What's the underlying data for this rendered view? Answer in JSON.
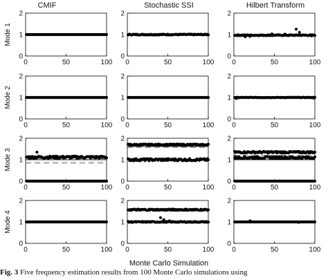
{
  "figure": {
    "column_titles": [
      "CMIF",
      "Stochastic SSI",
      "Hilbert Transform"
    ],
    "row_labels": [
      "Mode 1",
      "Mode 2",
      "Mode 3",
      "Mode 4"
    ],
    "x_label": "Monte Carlo Simulation",
    "caption_label": "Fig. 3",
    "caption_text": " Five frequency estimation results from 100 Monte Carlo simulations using"
  },
  "chart_data": {
    "type": "scatter",
    "xlim": [
      0,
      100
    ],
    "ylim": [
      0,
      2
    ],
    "x_ticks": [
      0,
      50,
      100
    ],
    "y_ticks": [
      0,
      1,
      2
    ],
    "xlabel": "Monte Carlo Simulation",
    "panels": [
      {
        "row": "Mode 1",
        "column": "CMIF",
        "bands": [
          {
            "y": 1.0,
            "jitter": 0.0
          }
        ],
        "reference_lines": [
          {
            "y": 1.0,
            "style": "solid"
          }
        ],
        "points": []
      },
      {
        "row": "Mode 1",
        "column": "Stochastic SSI",
        "bands": [
          {
            "y": 1.0,
            "jitter": 0.02
          }
        ],
        "reference_lines": [
          {
            "y": 1.0,
            "style": "solid"
          }
        ],
        "points": []
      },
      {
        "row": "Mode 1",
        "column": "Hilbert Transform",
        "bands": [
          {
            "y": 0.97,
            "jitter": 0.02
          }
        ],
        "reference_lines": [
          {
            "y": 1.0,
            "style": "solid"
          }
        ],
        "points": [
          {
            "x": 14,
            "y": 0.9
          },
          {
            "x": 20,
            "y": 0.92
          },
          {
            "x": 47,
            "y": 1.03
          },
          {
            "x": 63,
            "y": 1.02
          },
          {
            "x": 77,
            "y": 1.25
          },
          {
            "x": 81,
            "y": 1.1
          },
          {
            "x": 96,
            "y": 0.94
          }
        ]
      },
      {
        "row": "Mode 2",
        "column": "CMIF",
        "bands": [
          {
            "y": 1.0,
            "jitter": 0.0
          }
        ],
        "reference_lines": [
          {
            "y": 1.0,
            "style": "solid"
          }
        ],
        "points": []
      },
      {
        "row": "Mode 2",
        "column": "Stochastic SSI",
        "bands": [
          {
            "y": 1.0,
            "jitter": 0.0
          }
        ],
        "reference_lines": [
          {
            "y": 1.0,
            "style": "solid"
          }
        ],
        "points": []
      },
      {
        "row": "Mode 2",
        "column": "Hilbert Transform",
        "bands": [
          {
            "y": 1.0,
            "jitter": 0.01
          }
        ],
        "reference_lines": [
          {
            "y": 1.0,
            "style": "solid"
          }
        ],
        "points": [
          {
            "x": 3,
            "y": 0.95
          },
          {
            "x": 99,
            "y": 0.97
          }
        ]
      },
      {
        "row": "Mode 3",
        "column": "CMIF",
        "bands": [
          {
            "y": 1.12,
            "jitter": 0.05
          },
          {
            "y": 0.0,
            "jitter": 0.0
          }
        ],
        "reference_lines": [
          {
            "y": 1.0,
            "style": "solid"
          },
          {
            "y": 0.85,
            "style": "dashed"
          }
        ],
        "points": [
          {
            "x": 14,
            "y": 1.35
          }
        ]
      },
      {
        "row": "Mode 3",
        "column": "Stochastic SSI",
        "bands": [
          {
            "y": 1.7,
            "jitter": 0.03
          },
          {
            "y": 1.0,
            "jitter": 0.05
          }
        ],
        "reference_lines": [
          {
            "y": 1.0,
            "style": "solid"
          },
          {
            "y": 1.58,
            "style": "dashed"
          },
          {
            "y": 1.62,
            "style": "solid"
          }
        ],
        "points": []
      },
      {
        "row": "Mode 3",
        "column": "Hilbert Transform",
        "bands": [
          {
            "y": 1.35,
            "jitter": 0.04
          },
          {
            "y": 1.1,
            "jitter": 0.05
          },
          {
            "y": 0.0,
            "jitter": 0.0
          }
        ],
        "reference_lines": [
          {
            "y": 1.0,
            "style": "solid"
          },
          {
            "y": 1.2,
            "style": "dashed"
          }
        ],
        "points": []
      },
      {
        "row": "Mode 4",
        "column": "CMIF",
        "bands": [
          {
            "y": 1.0,
            "jitter": 0.0
          }
        ],
        "reference_lines": [
          {
            "y": 1.0,
            "style": "solid"
          }
        ],
        "points": []
      },
      {
        "row": "Mode 4",
        "column": "Stochastic SSI",
        "bands": [
          {
            "y": 1.57,
            "jitter": 0.03
          },
          {
            "y": 1.0,
            "jitter": 0.02
          }
        ],
        "reference_lines": [
          {
            "y": 1.0,
            "style": "solid"
          },
          {
            "y": 1.5,
            "style": "dashed"
          }
        ],
        "points": [
          {
            "x": 41,
            "y": 1.2
          },
          {
            "x": 45,
            "y": 1.1
          },
          {
            "x": 52,
            "y": 1.05
          }
        ]
      },
      {
        "row": "Mode 4",
        "column": "Hilbert Transform",
        "bands": [
          {
            "y": 1.0,
            "jitter": 0.0
          }
        ],
        "reference_lines": [
          {
            "y": 1.0,
            "style": "solid"
          }
        ],
        "points": [
          {
            "x": 20,
            "y": 1.05
          },
          {
            "x": 80,
            "y": 0.98
          }
        ]
      }
    ]
  }
}
